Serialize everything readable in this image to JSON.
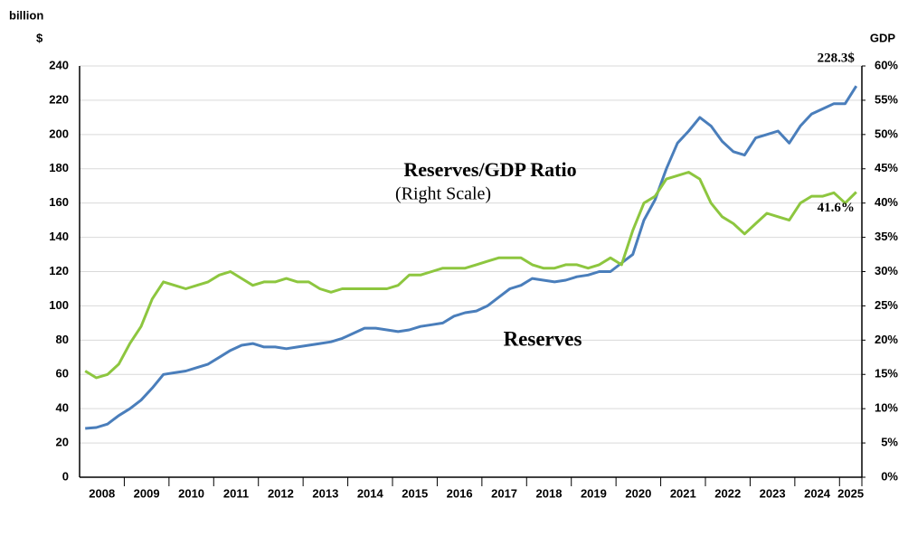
{
  "chart_data": {
    "type": "line",
    "ylabel": [
      "billion",
      "$"
    ],
    "y2label": "GDP",
    "categories": [
      "2008",
      null,
      null,
      null,
      "2009",
      null,
      null,
      null,
      "2010",
      null,
      null,
      null,
      "2011",
      null,
      null,
      null,
      "2012",
      null,
      null,
      null,
      "2013",
      null,
      null,
      null,
      "2014",
      null,
      null,
      null,
      "2015",
      null,
      null,
      null,
      "2016",
      null,
      null,
      null,
      "2017",
      null,
      null,
      null,
      "2018",
      null,
      null,
      null,
      "2019",
      null,
      null,
      null,
      "2020",
      null,
      null,
      null,
      "2021",
      null,
      null,
      null,
      "2022",
      null,
      null,
      null,
      "2023",
      null,
      null,
      null,
      "2024",
      null,
      null,
      null,
      "2025",
      null
    ],
    "series": [
      {
        "name": "Reserves",
        "color": "#4a7ebb",
        "axis": "y",
        "values": [
          28.5,
          29,
          31,
          36,
          40,
          45,
          52,
          60,
          61,
          62,
          64,
          66,
          70,
          74,
          77,
          78,
          76,
          76,
          75,
          76,
          77,
          78,
          79,
          81,
          84,
          87,
          87,
          86,
          85,
          86,
          88,
          89,
          90,
          94,
          96,
          97,
          100,
          105,
          110,
          112,
          116,
          115,
          114,
          115,
          117,
          118,
          120,
          120,
          125,
          130,
          150,
          162,
          180,
          195,
          202,
          210,
          205,
          196,
          190,
          188,
          198,
          200,
          202,
          195,
          205,
          212,
          215,
          218,
          218,
          228.3
        ],
        "value_labels": [
          null,
          null,
          null,
          null,
          null,
          null,
          null,
          null,
          null,
          null,
          null,
          null,
          null,
          null,
          null,
          null,
          null,
          null,
          null,
          null,
          null,
          null,
          null,
          null,
          null,
          null,
          null,
          null,
          null,
          null,
          null,
          null,
          null,
          null,
          null,
          null,
          null,
          null,
          null,
          null,
          null,
          null,
          null,
          null,
          null,
          null,
          null,
          null,
          null,
          null,
          null,
          null,
          null,
          null,
          null,
          null,
          null,
          null,
          null,
          null,
          null,
          null,
          null,
          null,
          null,
          null,
          null,
          null,
          null,
          "228.3$"
        ]
      },
      {
        "name": "Reserves/GDP Ratio",
        "subtitle": "(Right Scale)",
        "color": "#8dc63f",
        "axis": "y2",
        "values": [
          15.5,
          14.5,
          15,
          16.5,
          19.5,
          22,
          26,
          28.5,
          28,
          27.5,
          28,
          28.5,
          29.5,
          30,
          29,
          28,
          28.5,
          28.5,
          29,
          28.5,
          28.5,
          27.5,
          27,
          27.5,
          27.5,
          27.5,
          27.5,
          27.5,
          28,
          29.5,
          29.5,
          30,
          30.5,
          30.5,
          30.5,
          31,
          31.5,
          32,
          32,
          32,
          31,
          30.5,
          30.5,
          31,
          31,
          30.5,
          31,
          32,
          31,
          36,
          40,
          41,
          43.5,
          44,
          44.5,
          43.5,
          40,
          38,
          37,
          35.5,
          37,
          38.5,
          38,
          37.5,
          40,
          41,
          41,
          41.5,
          40,
          41.6
        ],
        "value_labels": [
          null,
          null,
          null,
          null,
          null,
          null,
          null,
          null,
          null,
          null,
          null,
          null,
          null,
          null,
          null,
          null,
          null,
          null,
          null,
          null,
          null,
          null,
          null,
          null,
          null,
          null,
          null,
          null,
          null,
          null,
          null,
          null,
          null,
          null,
          null,
          null,
          null,
          null,
          null,
          null,
          null,
          null,
          null,
          null,
          null,
          null,
          null,
          null,
          null,
          null,
          null,
          null,
          null,
          null,
          null,
          null,
          null,
          null,
          null,
          null,
          null,
          null,
          null,
          null,
          null,
          null,
          null,
          null,
          null,
          "41.6%"
        ]
      }
    ],
    "ylim": [
      0,
      240
    ],
    "yticks": [
      0,
      20,
      40,
      60,
      80,
      100,
      120,
      140,
      160,
      180,
      200,
      220,
      240
    ],
    "y2lim": [
      0,
      60
    ],
    "y2ticks": [
      {
        "value": 0,
        "label": "0%"
      },
      {
        "value": 5,
        "label": "5%"
      },
      {
        "value": 10,
        "label": "10%"
      },
      {
        "value": 15,
        "label": "15%"
      },
      {
        "value": 20,
        "label": "20%"
      },
      {
        "value": 25,
        "label": "25%"
      },
      {
        "value": 30,
        "label": "30%"
      },
      {
        "value": 35,
        "label": "35%"
      },
      {
        "value": 40,
        "label": "40%"
      },
      {
        "value": 45,
        "label": "45%"
      },
      {
        "value": 50,
        "label": "50%"
      },
      {
        "value": 55,
        "label": "55%"
      },
      {
        "value": 60,
        "label": "60%"
      }
    ],
    "grid": true
  }
}
